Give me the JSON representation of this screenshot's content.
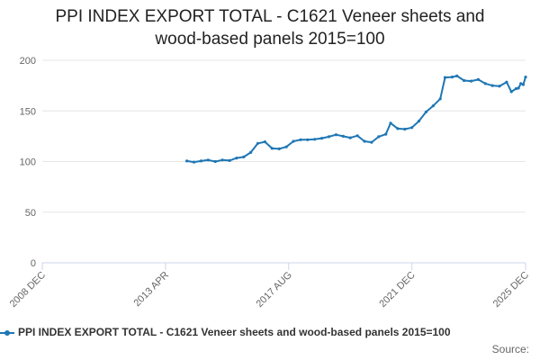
{
  "title": {
    "line1": "PPI INDEX EXPORT TOTAL - C1621 Veneer sheets and",
    "line2": "wood-based panels 2015=100"
  },
  "legend": {
    "label": "PPI INDEX EXPORT TOTAL - C1621 Veneer sheets and wood-based panels 2015=100"
  },
  "source": "Source:",
  "colors": {
    "series": "#1f77b4",
    "grid": "#e6e6e6",
    "axis": "#ccd6eb"
  },
  "chart_data": {
    "type": "line",
    "title": "PPI INDEX EXPORT TOTAL - C1621 Veneer sheets and wood-based panels 2015=100",
    "xlabel": "",
    "ylabel": "",
    "ylim": [
      0,
      200
    ],
    "yticks": [
      0,
      50,
      100,
      150,
      200
    ],
    "x_range": [
      "2008-12",
      "2025-12"
    ],
    "xticks": [
      {
        "date": "2008-12",
        "label": "2008 DEC"
      },
      {
        "date": "2013-04",
        "label": "2013 APR"
      },
      {
        "date": "2017-08",
        "label": "2017 AUG"
      },
      {
        "date": "2021-12",
        "label": "2021 DEC"
      },
      {
        "date": "2025-12",
        "label": "2025 DEC"
      }
    ],
    "grid": true,
    "legend_position": "bottom",
    "series": [
      {
        "name": "PPI INDEX EXPORT TOTAL - C1621 Veneer sheets and wood-based panels 2015=100",
        "points": [
          [
            "2014-01",
            100.5
          ],
          [
            "2014-04",
            99.5
          ],
          [
            "2014-07",
            100.5
          ],
          [
            "2014-10",
            101.5
          ],
          [
            "2015-01",
            100.0
          ],
          [
            "2015-04",
            101.5
          ],
          [
            "2015-07",
            101.0
          ],
          [
            "2015-10",
            103.5
          ],
          [
            "2016-01",
            104.5
          ],
          [
            "2016-04",
            109.0
          ],
          [
            "2016-07",
            118.0
          ],
          [
            "2016-10",
            119.5
          ],
          [
            "2017-01",
            113.0
          ],
          [
            "2017-04",
            112.5
          ],
          [
            "2017-07",
            114.5
          ],
          [
            "2017-10",
            120.0
          ],
          [
            "2018-01",
            121.5
          ],
          [
            "2018-04",
            121.5
          ],
          [
            "2018-07",
            122.0
          ],
          [
            "2018-10",
            123.0
          ],
          [
            "2019-01",
            124.5
          ],
          [
            "2019-04",
            126.5
          ],
          [
            "2019-07",
            125.0
          ],
          [
            "2019-10",
            123.5
          ],
          [
            "2020-01",
            125.5
          ],
          [
            "2020-04",
            120.0
          ],
          [
            "2020-07",
            119.0
          ],
          [
            "2020-10",
            124.5
          ],
          [
            "2021-01",
            127.0
          ],
          [
            "2021-03",
            138.0
          ],
          [
            "2021-06",
            132.5
          ],
          [
            "2021-09",
            132.0
          ],
          [
            "2021-12",
            133.5
          ],
          [
            "2022-03",
            140.0
          ],
          [
            "2022-06",
            149.0
          ],
          [
            "2022-09",
            155.0
          ],
          [
            "2022-12",
            162.0
          ],
          [
            "2023-02",
            183.0
          ],
          [
            "2023-05",
            183.5
          ],
          [
            "2023-07",
            184.5
          ],
          [
            "2023-10",
            180.0
          ],
          [
            "2024-01",
            179.5
          ],
          [
            "2024-04",
            181.0
          ],
          [
            "2024-07",
            177.0
          ],
          [
            "2024-10",
            175.0
          ],
          [
            "2025-01",
            174.5
          ],
          [
            "2025-04",
            178.5
          ],
          [
            "2025-06",
            169.0
          ],
          [
            "2025-08",
            172.0
          ],
          [
            "2025-09",
            172.5
          ],
          [
            "2025-10",
            177.0
          ],
          [
            "2025-11",
            176.0
          ],
          [
            "2025-12",
            183.5
          ]
        ]
      }
    ]
  }
}
